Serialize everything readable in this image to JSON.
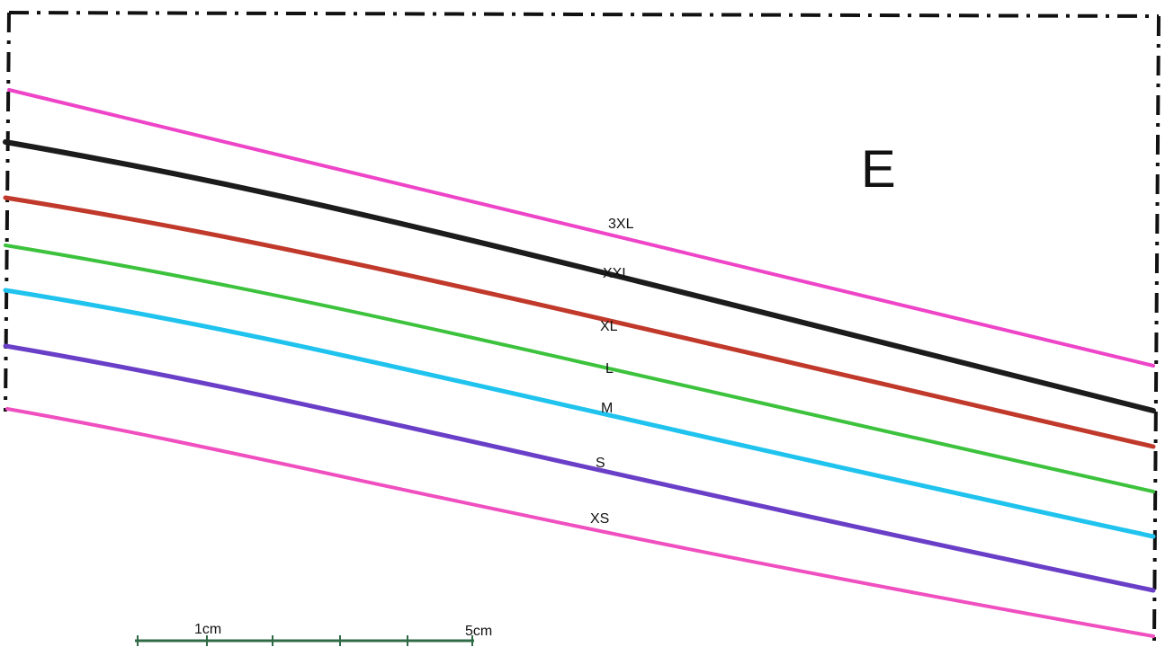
{
  "piece": {
    "letter": "E"
  },
  "size_lines": [
    {
      "label": "3XL",
      "color": "#ee44c8"
    },
    {
      "label": "XXL",
      "color": "#1c1c1c"
    },
    {
      "label": "XL",
      "color": "#c0392b"
    },
    {
      "label": "L",
      "color": "#3cc23c"
    },
    {
      "label": "M",
      "color": "#1fc3ee"
    },
    {
      "label": "S",
      "color": "#6a3fc8"
    },
    {
      "label": "XS",
      "color": "#f04fc0"
    }
  ],
  "scale": {
    "label_small": "1cm",
    "label_large": "5cm",
    "color": "#2e6b45"
  },
  "border": {
    "style": "dashed",
    "color": "#111111"
  }
}
